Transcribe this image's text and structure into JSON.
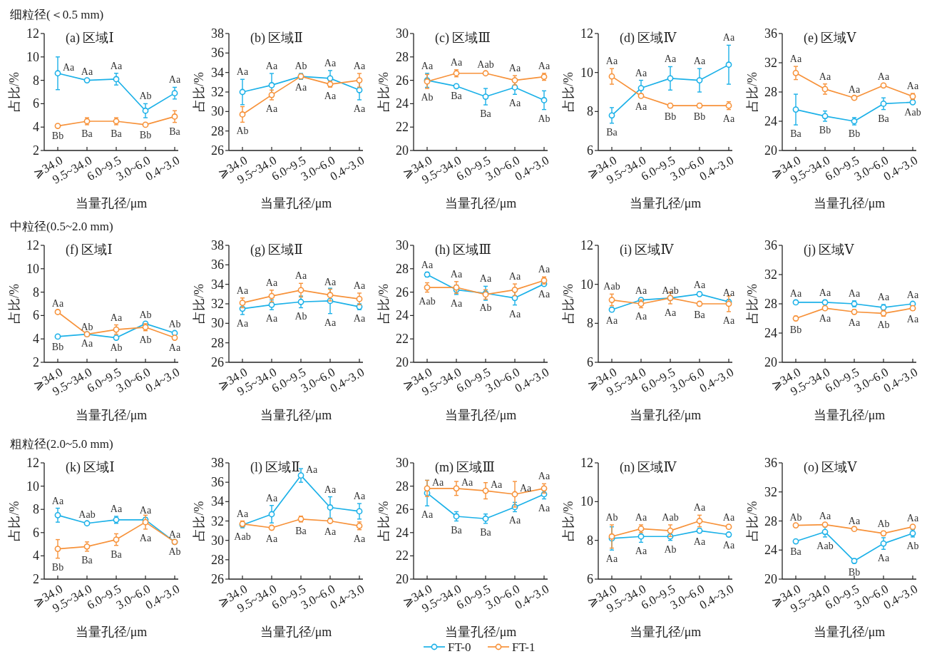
{
  "chart_data": [
    {
      "type": "line",
      "title": "(a) 区域Ⅰ",
      "subtitle": "细粒径(＜0.5 mm)",
      "xlabel": "当量孔径/μm",
      "ylabel": "占比/%",
      "categories": [
        "⩾34.0",
        "9.5~34.0",
        "6.0~9.5",
        "3.0~6.0",
        "0.4~3.0"
      ],
      "ylim": [
        2,
        12
      ],
      "yticks": [
        2,
        4,
        6,
        8,
        10,
        12
      ],
      "marker": "circle",
      "series": [
        {
          "color": "#1cb1e8",
          "values": [
            8.6,
            8.0,
            8.1,
            5.4,
            6.9
          ],
          "errors": [
            1.4,
            0.1,
            0.5,
            0.6,
            0.5
          ],
          "value_labels": [
            "Aa",
            "Aa",
            "Aa",
            "Ab",
            "Aa"
          ]
        },
        {
          "color": "#f7923a",
          "values": [
            4.1,
            4.5,
            4.5,
            4.2,
            4.9
          ],
          "errors": [
            0.1,
            0.3,
            0.3,
            0.1,
            0.5
          ],
          "value_labels": [
            "Bb",
            "Ba",
            "Ba",
            "Bb",
            "Ba"
          ]
        }
      ]
    },
    {
      "type": "line",
      "title": "(b) 区域Ⅱ",
      "xlabel": "当量孔径/μm",
      "ylabel": "占比/%",
      "categories": [
        "⩾34.0",
        "9.5~34.0",
        "6.0~9.5",
        "3.0~6.0",
        "0.4~3.0"
      ],
      "ylim": [
        26,
        38
      ],
      "yticks": [
        26,
        28,
        30,
        32,
        34,
        36,
        38
      ],
      "marker": "circle",
      "series": [
        {
          "color": "#1cb1e8",
          "values": [
            32.0,
            32.7,
            33.6,
            33.4,
            32.2
          ],
          "errors": [
            1.3,
            1.2,
            0.3,
            0.8,
            1.0
          ],
          "value_labels": [
            "Aa",
            "Aa",
            "Ab",
            "Aa",
            "Aa"
          ]
        },
        {
          "color": "#f7923a",
          "values": [
            29.7,
            31.7,
            33.6,
            32.8,
            33.2
          ],
          "errors": [
            0.8,
            0.5,
            0.2,
            0.3,
            0.7
          ],
          "value_labels": [
            "Ab",
            "Aa",
            "Aa",
            "Aa",
            "Aa"
          ]
        }
      ]
    },
    {
      "type": "line",
      "title": "(c) 区域Ⅲ",
      "xlabel": "当量孔径/μm",
      "ylabel": "占比/%",
      "categories": [
        "⩾34.0",
        "9.5~34.0",
        "6.0~9.5",
        "3.0~6.0",
        "0.4~3.0"
      ],
      "ylim": [
        20,
        30
      ],
      "yticks": [
        20,
        22,
        24,
        26,
        28,
        30
      ],
      "marker": "circle",
      "series": [
        {
          "color": "#1cb1e8",
          "values": [
            26.0,
            25.5,
            24.6,
            25.4,
            24.3
          ],
          "errors": [
            0.6,
            0.1,
            0.7,
            0.6,
            0.8
          ],
          "value_labels": [
            "Aa",
            "Ba",
            "Ba",
            "Aa",
            "Ab"
          ]
        },
        {
          "color": "#f7923a",
          "values": [
            25.9,
            26.6,
            26.6,
            26.0,
            26.3
          ],
          "errors": [
            0.6,
            0.3,
            0.1,
            0.4,
            0.3
          ],
          "value_labels": [
            "Ab",
            "Aa",
            "Aab",
            "Aa",
            "Aa"
          ]
        }
      ]
    },
    {
      "type": "line",
      "title": "(d) 区域Ⅳ",
      "xlabel": "当量孔径/μm",
      "ylabel": "占比/%",
      "categories": [
        "⩾34.0",
        "9.5~34.0",
        "6.0~9.5",
        "3.0~6.0",
        "0.4~3.0"
      ],
      "ylim": [
        6,
        12
      ],
      "yticks": [
        6,
        8,
        10,
        12
      ],
      "marker": "circle",
      "series": [
        {
          "color": "#1cb1e8",
          "values": [
            7.8,
            9.2,
            9.7,
            9.6,
            10.4
          ],
          "errors": [
            0.4,
            0.4,
            0.6,
            0.6,
            1.0
          ],
          "value_labels": [
            "Ba",
            "Aa",
            "Aa",
            "Aa",
            "Aa"
          ]
        },
        {
          "color": "#f7923a",
          "values": [
            9.8,
            8.8,
            8.3,
            8.3,
            8.3
          ],
          "errors": [
            0.4,
            0.1,
            0.1,
            0.1,
            0.2
          ],
          "value_labels": [
            "Aa",
            "Aa",
            "Bb",
            "Bb",
            "Aa"
          ]
        }
      ]
    },
    {
      "type": "line",
      "title": "(e) 区域Ⅴ",
      "xlabel": "当量孔径/μm",
      "ylabel": "占比/%",
      "categories": [
        "⩾34.0",
        "9.5~34.0",
        "6.0~9.5",
        "3.0~6.0",
        "0.4~3.0"
      ],
      "ylim": [
        20,
        36
      ],
      "yticks": [
        20,
        24,
        28,
        32,
        36
      ],
      "marker": "circle",
      "series": [
        {
          "color": "#1cb1e8",
          "values": [
            25.6,
            24.7,
            24.0,
            26.4,
            26.6
          ],
          "errors": [
            2.1,
            0.7,
            0.5,
            0.8,
            0.2
          ],
          "value_labels": [
            "Ba",
            "Bb",
            "Bb",
            "Ba",
            "Aab"
          ]
        },
        {
          "color": "#f7923a",
          "values": [
            30.6,
            28.4,
            27.2,
            28.9,
            27.4
          ],
          "errors": [
            0.9,
            0.7,
            0.1,
            0.2,
            0.4
          ],
          "value_labels": [
            "Aa",
            "Aa",
            "Aa",
            "Aa",
            "Aa"
          ]
        }
      ]
    },
    {
      "type": "line",
      "title": "(f) 区域Ⅰ",
      "subtitle": "中粒径(0.5~2.0 mm)",
      "xlabel": "当量孔径/μm",
      "ylabel": "占比/%",
      "categories": [
        "⩾34.0",
        "9.5~34.0",
        "6.0~9.5",
        "3.0~6.0",
        "0.4~3.0"
      ],
      "ylim": [
        2,
        12
      ],
      "yticks": [
        2,
        4,
        6,
        8,
        10,
        12
      ],
      "marker": "circle",
      "series": [
        {
          "color": "#1cb1e8",
          "values": [
            4.2,
            4.4,
            4.1,
            5.3,
            4.5
          ],
          "errors": [
            0.1,
            null,
            0.1,
            0.1,
            0.1
          ],
          "value_labels": [
            "Bb",
            "Ab",
            "Ab",
            "Ab",
            "Ab"
          ]
        },
        {
          "color": "#f7923a",
          "values": [
            6.3,
            4.4,
            4.8,
            5.0,
            4.1
          ],
          "errors": [
            0.1,
            null,
            0.4,
            0.3,
            0.1
          ],
          "value_labels": [
            "Aa",
            "Aa",
            "Aa",
            "Ab",
            "Aa"
          ]
        }
      ]
    },
    {
      "type": "line",
      "title": "(g) 区域Ⅱ",
      "xlabel": "当量孔径/μm",
      "ylabel": "占比/%",
      "categories": [
        "⩾34.0",
        "9.5~34.0",
        "6.0~9.5",
        "3.0~6.0",
        "0.4~3.0"
      ],
      "ylim": [
        26,
        38
      ],
      "yticks": [
        26,
        28,
        30,
        32,
        34,
        36,
        38
      ],
      "marker": "circle",
      "series": [
        {
          "color": "#1cb1e8",
          "values": [
            31.5,
            31.9,
            32.2,
            32.3,
            31.7
          ],
          "errors": [
            0.6,
            0.5,
            0.6,
            1.3,
            0.3
          ],
          "value_labels": [
            "Aa",
            "Aa",
            "Ab",
            "Aa",
            "Aa"
          ]
        },
        {
          "color": "#f7923a",
          "values": [
            32.1,
            32.8,
            33.4,
            32.9,
            32.5
          ],
          "errors": [
            0.5,
            0.6,
            0.7,
            0.6,
            0.6
          ],
          "value_labels": [
            "Aa",
            "Aa",
            "Aa",
            "Aa",
            "Aa"
          ]
        }
      ]
    },
    {
      "type": "line",
      "title": "(h) 区域Ⅲ",
      "xlabel": "当量孔径/μm",
      "ylabel": "占比/%",
      "categories": [
        "⩾34.0",
        "9.5~34.0",
        "6.0~9.5",
        "3.0~6.0",
        "0.4~3.0"
      ],
      "ylim": [
        20,
        30
      ],
      "yticks": [
        20,
        22,
        24,
        26,
        28,
        30
      ],
      "marker": "circle",
      "series": [
        {
          "color": "#1cb1e8",
          "values": [
            27.5,
            26.2,
            25.9,
            25.5,
            26.7
          ],
          "errors": [
            0.2,
            0.4,
            0.6,
            0.6,
            0.1
          ],
          "value_labels": [
            "Aa",
            "Aa",
            "Aa",
            "Aa",
            "Aa"
          ]
        },
        {
          "color": "#f7923a",
          "values": [
            26.4,
            26.4,
            25.8,
            26.2,
            27.0
          ],
          "errors": [
            0.4,
            0.5,
            0.4,
            0.5,
            0.3
          ],
          "value_labels": [
            "Aab",
            "Aa",
            "Ab",
            "Aa",
            "Aa"
          ]
        }
      ]
    },
    {
      "type": "line",
      "title": "(i) 区域Ⅳ",
      "xlabel": "当量孔径/μm",
      "ylabel": "占比/%",
      "categories": [
        "⩾34.0",
        "9.5~34.0",
        "6.0~9.5",
        "3.0~6.0",
        "0.4~3.0"
      ],
      "ylim": [
        6,
        12
      ],
      "yticks": [
        6,
        8,
        10,
        12
      ],
      "marker": "circle",
      "series": [
        {
          "color": "#1cb1e8",
          "values": [
            8.7,
            9.2,
            9.3,
            9.5,
            9.1
          ],
          "errors": [
            0.1,
            0.1,
            null,
            0.1,
            0.1
          ],
          "value_labels": [
            "Aa",
            "Aa",
            "Aab",
            "Aa",
            "Aa"
          ]
        },
        {
          "color": "#f7923a",
          "values": [
            9.2,
            9.0,
            9.3,
            9.0,
            9.0
          ],
          "errors": [
            0.3,
            0.2,
            0.3,
            0.1,
            0.4
          ],
          "value_labels": [
            "Aab",
            "Aa",
            "Aa",
            "Ba",
            "Aa"
          ]
        }
      ]
    },
    {
      "type": "line",
      "title": "(j) 区域Ⅴ",
      "xlabel": "当量孔径/μm",
      "ylabel": "占比/%",
      "categories": [
        "⩾34.0",
        "9.5~34.0",
        "6.0~9.5",
        "3.0~6.0",
        "0.4~3.0"
      ],
      "ylim": [
        20,
        36
      ],
      "yticks": [
        20,
        24,
        28,
        32,
        36
      ],
      "marker": "circle",
      "series": [
        {
          "color": "#1cb1e8",
          "values": [
            28.2,
            28.2,
            28.0,
            27.5,
            28.0
          ],
          "errors": [
            0.2,
            0.3,
            0.4,
            0.4,
            0.2
          ],
          "value_labels": [
            "Aa",
            "Aa",
            "Aa",
            "Aa",
            "Aa"
          ]
        },
        {
          "color": "#f7923a",
          "values": [
            26.0,
            27.4,
            26.9,
            26.7,
            27.4
          ],
          "errors": [
            0.3,
            0.2,
            0.3,
            0.4,
            0.3
          ],
          "value_labels": [
            "Bb",
            "Aa",
            "Aa",
            "Ab",
            "Aa"
          ]
        }
      ]
    },
    {
      "type": "line",
      "title": "(k) 区域Ⅰ",
      "subtitle": "粗粒径(2.0~5.0 mm)",
      "xlabel": "当量孔径/μm",
      "ylabel": "占比/%",
      "categories": [
        "⩾34.0",
        "9.5~34.0",
        "6.0~9.5",
        "3.0~6.0",
        "0.4~3.0"
      ],
      "ylim": [
        2,
        12
      ],
      "yticks": [
        2,
        4,
        6,
        8,
        10,
        12
      ],
      "marker": "circle",
      "series": [
        {
          "color": "#1cb1e8",
          "values": [
            7.5,
            6.8,
            7.1,
            7.1,
            5.2
          ],
          "errors": [
            0.6,
            0.1,
            0.3,
            0.2,
            null
          ],
          "value_labels": [
            "Aa",
            "Aab",
            "Aa",
            "Aa",
            "Aa"
          ]
        },
        {
          "color": "#f7923a",
          "values": [
            4.6,
            4.8,
            5.4,
            6.9,
            5.2
          ],
          "errors": [
            0.8,
            0.4,
            0.5,
            0.6,
            0.1
          ],
          "value_labels": [
            "Bb",
            "Ba",
            "Ba",
            "Aa",
            "Ab"
          ]
        }
      ]
    },
    {
      "type": "line",
      "title": "(l) 区域Ⅱ",
      "xlabel": "当量孔径/μm",
      "ylabel": "占比/%",
      "categories": [
        "⩾34.0",
        "9.5~34.0",
        "6.0~9.5",
        "3.0~6.0",
        "0.4~3.0"
      ],
      "ylim": [
        26,
        38
      ],
      "yticks": [
        26,
        28,
        30,
        32,
        34,
        36,
        38
      ],
      "marker": "circle",
      "series": [
        {
          "color": "#1cb1e8",
          "values": [
            31.6,
            32.7,
            36.7,
            33.4,
            33.0
          ],
          "errors": [
            0.3,
            0.9,
            0.7,
            1.1,
            0.8
          ],
          "value_labels": [
            "Aab",
            "Aa",
            "Aa",
            "Aa",
            "Aa"
          ]
        },
        {
          "color": "#f7923a",
          "values": [
            31.7,
            31.3,
            32.2,
            32.0,
            31.5
          ],
          "errors": [
            0.3,
            0.2,
            0.3,
            0.2,
            0.4
          ],
          "value_labels": [
            "Aa",
            "Aa",
            "Ba",
            "Aa",
            "Aa"
          ]
        }
      ]
    },
    {
      "type": "line",
      "title": "(m) 区域Ⅲ",
      "xlabel": "当量孔径/μm",
      "ylabel": "占比/%",
      "categories": [
        "⩾34.0",
        "9.5~34.0",
        "6.0~9.5",
        "3.0~6.0",
        "0.4~3.0"
      ],
      "ylim": [
        20,
        30
      ],
      "yticks": [
        20,
        22,
        24,
        26,
        28,
        30
      ],
      "marker": "circle",
      "legend": "bottom",
      "series": [
        {
          "name": "FT-0",
          "color": "#1cb1e8",
          "values": [
            27.4,
            25.4,
            25.2,
            26.2,
            27.3
          ],
          "errors": [
            1.1,
            0.4,
            0.4,
            0.4,
            0.4
          ],
          "value_labels": [
            "Aa",
            "Ba",
            "Ba",
            "Aa",
            "Aa"
          ]
        },
        {
          "name": "FT-1",
          "color": "#f7923a",
          "values": [
            27.8,
            27.8,
            27.6,
            27.3,
            27.8
          ],
          "errors": [
            0.7,
            0.6,
            0.7,
            1.1,
            0.4
          ],
          "value_labels": [
            "Aa",
            "Aa",
            "Aa",
            "Aa",
            "Aa"
          ]
        }
      ]
    },
    {
      "type": "line",
      "title": "(n) 区域Ⅳ",
      "xlabel": "当量孔径/μm",
      "ylabel": "占比/%",
      "categories": [
        "⩾34.0",
        "9.5~34.0",
        "6.0~9.5",
        "3.0~6.0",
        "0.4~3.0"
      ],
      "ylim": [
        6,
        12
      ],
      "yticks": [
        6,
        8,
        10,
        12
      ],
      "marker": "circle",
      "series": [
        {
          "color": "#1cb1e8",
          "values": [
            8.1,
            8.2,
            8.2,
            8.5,
            8.3
          ],
          "errors": [
            0.6,
            0.3,
            0.2,
            0.1,
            0.1
          ],
          "value_labels": [
            "Aa",
            "Aa",
            "Ab",
            "Aa",
            "Aa"
          ]
        },
        {
          "color": "#f7923a",
          "values": [
            8.2,
            8.6,
            8.5,
            9.0,
            8.7
          ],
          "errors": [
            0.6,
            0.2,
            0.3,
            0.3,
            0.1
          ],
          "value_labels": [
            "Ab",
            "Aa",
            "Aab",
            "Aa",
            "Aa"
          ]
        }
      ]
    },
    {
      "type": "line",
      "title": "(o) 区域Ⅴ",
      "xlabel": "当量孔径/μm",
      "ylabel": "占比/%",
      "categories": [
        "⩾34.0",
        "9.5~34.0",
        "6.0~9.5",
        "3.0~6.0",
        "0.4~3.0"
      ],
      "ylim": [
        20,
        36
      ],
      "yticks": [
        20,
        24,
        28,
        32,
        36
      ],
      "marker": "circle",
      "series": [
        {
          "color": "#1cb1e8",
          "values": [
            25.2,
            26.5,
            22.5,
            24.9,
            26.3
          ],
          "errors": [
            0.2,
            0.7,
            0.3,
            0.8,
            0.5
          ],
          "value_labels": [
            "Ba",
            "Aab",
            "Bb",
            "Aa",
            "Ab"
          ]
        },
        {
          "color": "#f7923a",
          "values": [
            27.4,
            27.5,
            26.9,
            26.3,
            27.2
          ],
          "errors": [
            0.1,
            0.2,
            0.1,
            0.3,
            0.2
          ],
          "value_labels": [
            "Ab",
            "Aa",
            "Aa",
            "Ab",
            "Aa"
          ]
        }
      ]
    }
  ]
}
